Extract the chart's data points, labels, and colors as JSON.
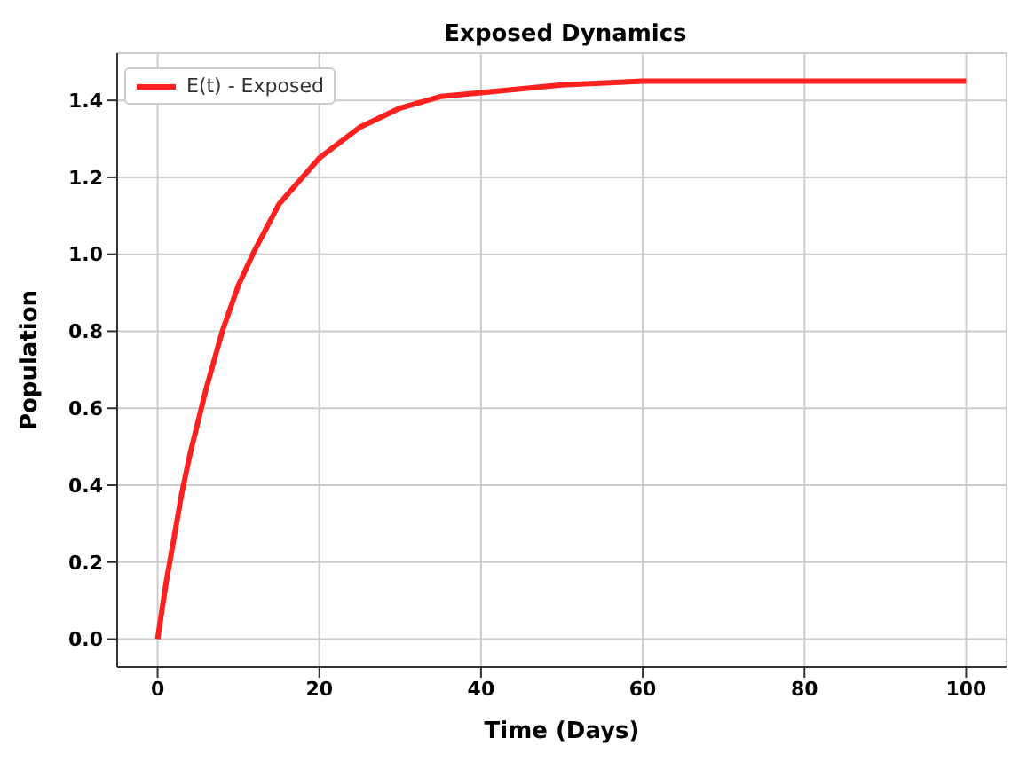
{
  "chart_data": {
    "type": "line",
    "title": "Exposed Dynamics",
    "xlabel": "Time (Days)",
    "ylabel": "Population",
    "x": [
      0,
      1,
      2,
      3,
      4,
      6,
      8,
      10,
      12,
      15,
      20,
      25,
      30,
      35,
      40,
      50,
      60,
      70,
      80,
      90,
      100
    ],
    "series": [
      {
        "name": "E(t) - Exposed",
        "color": "#ff2020",
        "values": [
          0,
          0.14,
          0.26,
          0.38,
          0.48,
          0.65,
          0.8,
          0.92,
          1.01,
          1.13,
          1.25,
          1.33,
          1.38,
          1.41,
          1.42,
          1.44,
          1.45,
          1.45,
          1.45,
          1.45,
          1.45
        ]
      }
    ],
    "xlim": [
      -5,
      105
    ],
    "xticks": [
      0,
      20,
      40,
      60,
      80,
      100
    ],
    "ylim": [
      -0.0725,
      1.5225
    ],
    "yticks": [
      {
        "value": 0,
        "label": "0.0"
      },
      0.2,
      0.4,
      0.6,
      0.8,
      {
        "value": 1,
        "label": "1.0"
      },
      1.2,
      1.4
    ],
    "grid": true,
    "legend": "top left",
    "marker": "none",
    "line_style": "solid"
  }
}
